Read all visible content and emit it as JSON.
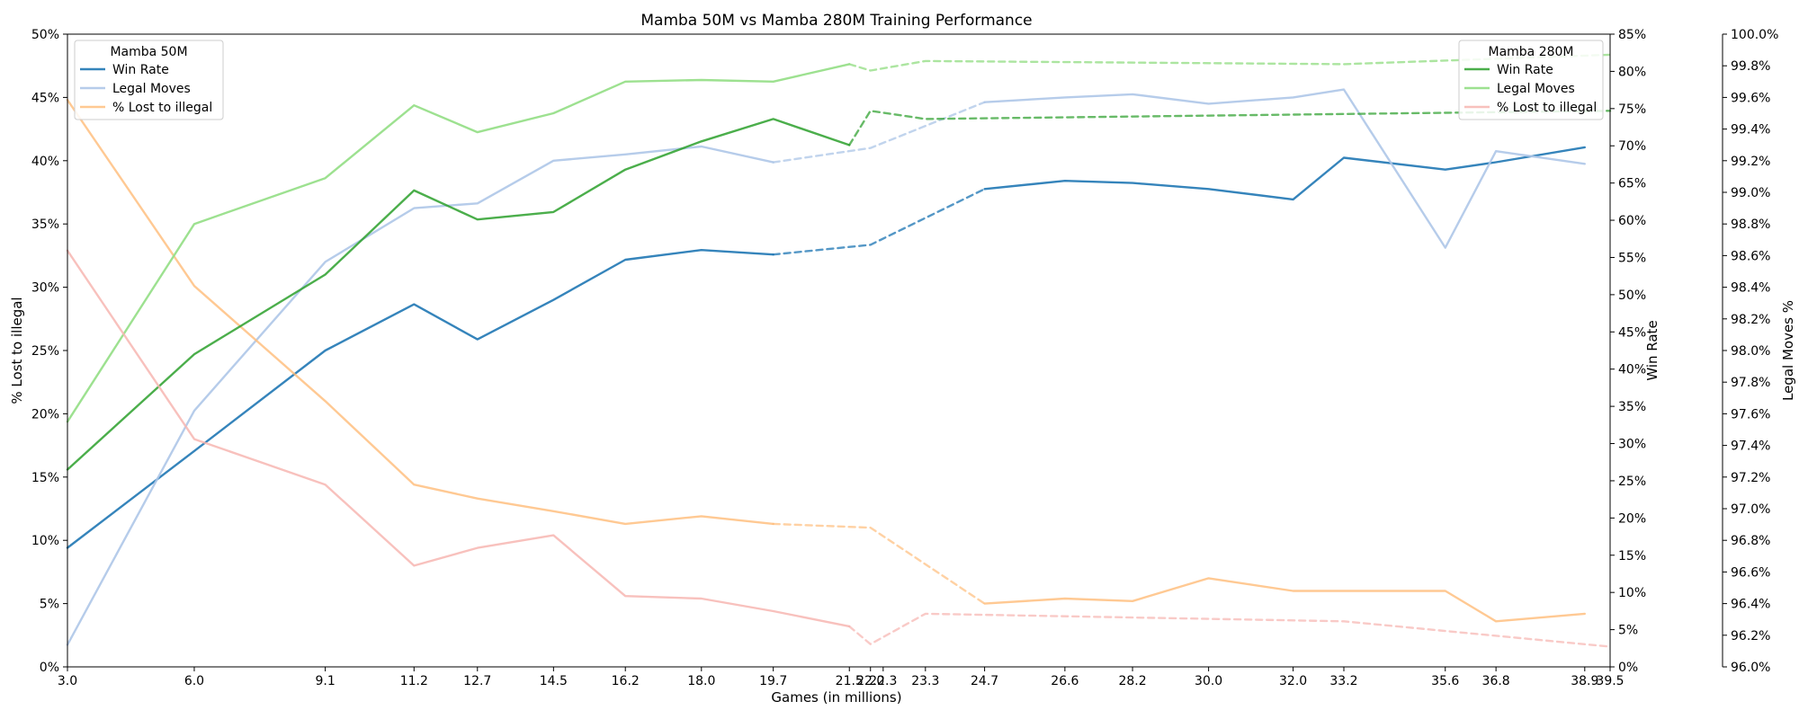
{
  "chart_data": {
    "type": "line",
    "title": "Mamba 50M vs Mamba 280M Training Performance",
    "xlabel": "Games (in millions)",
    "ylabel_left": "% Lost to illegal",
    "ylabel_right1": "Win Rate",
    "ylabel_right2": "Legal Moves %",
    "xlim": [
      3.0,
      39.5
    ],
    "ylim_left": [
      0,
      50
    ],
    "ylim_right1": [
      0,
      85
    ],
    "ylim_right2": [
      96.0,
      100.0
    ],
    "x_ticks": [
      "3.0",
      "6.0",
      "9.1",
      "11.2",
      "12.7",
      "14.5",
      "16.2",
      "18.0",
      "19.7",
      "21.5",
      "22.0",
      "22.3",
      "23.3",
      "24.7",
      "26.6",
      "28.2",
      "30.0",
      "32.0",
      "33.2",
      "35.6",
      "36.8",
      "38.9",
      "39.5"
    ],
    "x_tick_values": [
      3.0,
      6.0,
      9.1,
      11.2,
      12.7,
      14.5,
      16.2,
      18.0,
      19.7,
      21.5,
      22.0,
      22.3,
      23.3,
      24.7,
      26.6,
      28.2,
      30.0,
      32.0,
      33.2,
      35.6,
      36.8,
      38.9,
      39.5
    ],
    "y_ticks_left": [
      "0%",
      "5%",
      "10%",
      "15%",
      "20%",
      "25%",
      "30%",
      "35%",
      "40%",
      "45%",
      "50%"
    ],
    "y_ticks_right1": [
      "0%",
      "5%",
      "10%",
      "15%",
      "20%",
      "25%",
      "30%",
      "35%",
      "40%",
      "45%",
      "50%",
      "55%",
      "60%",
      "65%",
      "70%",
      "75%",
      "80%",
      "85%"
    ],
    "y_ticks_right2": [
      "96.0%",
      "96.2%",
      "96.4%",
      "96.6%",
      "96.8%",
      "97.0%",
      "97.2%",
      "97.4%",
      "97.6%",
      "97.8%",
      "98.0%",
      "98.2%",
      "98.4%",
      "98.6%",
      "98.8%",
      "99.0%",
      "99.2%",
      "99.4%",
      "99.6%",
      "99.8%",
      "100.0%"
    ],
    "legends": [
      {
        "title": "Mamba 50M",
        "position": "top-left",
        "entries": [
          "Win Rate",
          "Legal Moves",
          "% Lost to illegal"
        ]
      },
      {
        "title": "Mamba 280M",
        "position": "top-right",
        "entries": [
          "Win Rate",
          "Legal Moves",
          "% Lost to illegal"
        ]
      }
    ],
    "series": [
      {
        "model": "Mamba 50M",
        "metric": "Win Rate",
        "axis": "right1",
        "color": "#1f77b4",
        "opacity": 0.9,
        "x": [
          3.0,
          6.0,
          9.1,
          11.2,
          12.7,
          14.5,
          16.2,
          18.0,
          19.7
        ],
        "y": [
          16.0,
          29.0,
          42.5,
          48.7,
          44.0,
          49.3,
          54.7,
          56.0,
          55.4
        ],
        "x_dashed": [
          19.7,
          22.0,
          24.7
        ],
        "y_dashed": [
          55.4,
          56.7,
          64.2
        ],
        "x_after": [
          24.7,
          26.6,
          28.2,
          30.0,
          32.0,
          33.2,
          35.6,
          36.8,
          38.9
        ],
        "y_after": [
          64.2,
          65.3,
          65.0,
          64.2,
          62.8,
          68.4,
          66.8,
          67.8,
          69.8
        ]
      },
      {
        "model": "Mamba 50M",
        "metric": "Legal Moves",
        "axis": "right2",
        "color": "#aec7e8",
        "opacity": 0.9,
        "x": [
          3.0,
          6.0,
          9.1,
          11.2,
          12.7,
          14.5,
          16.2,
          18.0,
          19.7
        ],
        "y": [
          96.14,
          97.62,
          98.56,
          98.9,
          98.93,
          99.2,
          99.24,
          99.29,
          99.19
        ],
        "x_dashed": [
          19.7,
          22.0,
          24.7
        ],
        "y_dashed": [
          99.19,
          99.28,
          99.57
        ],
        "x_after": [
          24.7,
          26.6,
          28.2,
          30.0,
          32.0,
          33.2,
          35.6,
          36.8,
          38.9
        ],
        "y_after": [
          99.57,
          99.6,
          99.62,
          99.56,
          99.6,
          99.65,
          98.65,
          99.26,
          99.18
        ]
      },
      {
        "model": "Mamba 50M",
        "metric": "% Lost to illegal",
        "axis": "left",
        "color": "#ffbb78",
        "opacity": 0.8,
        "x": [
          3.0,
          6.0,
          9.1,
          11.2,
          12.7,
          14.5,
          16.2,
          18.0,
          19.7
        ],
        "y": [
          44.8,
          30.1,
          21.0,
          14.4,
          13.3,
          12.3,
          11.3,
          11.9,
          11.3
        ],
        "x_dashed": [
          19.7,
          22.0,
          24.7
        ],
        "y_dashed": [
          11.3,
          11.0,
          5.0
        ],
        "x_after": [
          24.7,
          26.6,
          28.2,
          30.0,
          32.0,
          33.2,
          35.6,
          36.8,
          38.9
        ],
        "y_after": [
          5.0,
          5.4,
          5.2,
          7.0,
          6.0,
          6.0,
          6.0,
          3.6,
          4.2
        ]
      },
      {
        "model": "Mamba 280M",
        "metric": "Win Rate",
        "axis": "right1",
        "color": "#2ca02c",
        "opacity": 0.85,
        "x": [
          3.0,
          6.0,
          9.1,
          11.2,
          12.7,
          14.5,
          16.2,
          18.0,
          19.7,
          21.5
        ],
        "y": [
          26.5,
          42.0,
          52.7,
          64.0,
          60.1,
          61.1,
          66.8,
          70.6,
          73.6,
          70.1
        ],
        "x_dashed": [
          21.5,
          22.0,
          23.3,
          39.5
        ],
        "y_dashed": [
          70.1,
          74.7,
          73.6,
          74.7
        ],
        "x_after": [],
        "y_after": []
      },
      {
        "model": "Mamba 280M",
        "metric": "Legal Moves",
        "axis": "right2",
        "color": "#98df8a",
        "opacity": 0.95,
        "x": [
          3.0,
          6.0,
          9.1,
          11.2,
          12.7,
          14.5,
          16.2,
          18.0,
          19.7,
          21.5
        ],
        "y": [
          97.55,
          98.8,
          99.09,
          99.55,
          99.38,
          99.5,
          99.7,
          99.71,
          99.7,
          99.81
        ],
        "x_dashed": [
          21.5,
          22.0,
          23.3,
          33.2,
          39.5
        ],
        "y_dashed": [
          99.81,
          99.77,
          99.83,
          99.81,
          99.87
        ],
        "x_after": [],
        "y_after": []
      },
      {
        "model": "Mamba 280M",
        "metric": "% Lost to illegal",
        "axis": "left",
        "color": "#f7b6b2",
        "opacity": 0.85,
        "x": [
          3.0,
          6.0,
          9.1,
          11.2,
          12.7,
          14.5,
          16.2,
          18.0,
          19.7,
          21.5
        ],
        "y": [
          32.9,
          18.0,
          14.4,
          8.0,
          9.4,
          10.4,
          5.6,
          5.4,
          4.4,
          3.2
        ],
        "x_dashed": [
          21.5,
          22.0,
          23.3,
          33.2,
          39.5
        ],
        "y_dashed": [
          3.2,
          1.8,
          4.2,
          3.6,
          1.6
        ],
        "x_after": [],
        "y_after": []
      }
    ]
  }
}
